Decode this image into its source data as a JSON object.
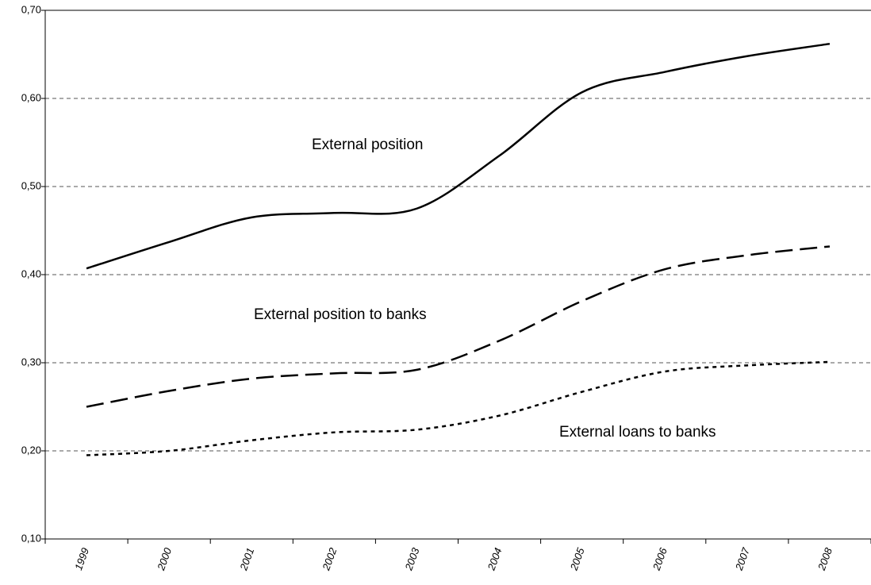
{
  "chart_data": {
    "type": "line",
    "categories": [
      "1999",
      "2000",
      "2001",
      "2002",
      "2003",
      "2004",
      "2005",
      "2006",
      "2007",
      "2008"
    ],
    "series": [
      {
        "name": "External position",
        "color": "#000000",
        "dash": "solid",
        "values": [
          0.407,
          0.437,
          0.465,
          0.47,
          0.475,
          0.535,
          0.607,
          0.63,
          0.648,
          0.662
        ]
      },
      {
        "name": "External position to banks",
        "color": "#000000",
        "dash": "long",
        "values": [
          0.25,
          0.268,
          0.282,
          0.288,
          0.292,
          0.325,
          0.37,
          0.406,
          0.422,
          0.432
        ]
      },
      {
        "name": "External loans to banks",
        "color": "#000000",
        "dash": "short",
        "values": [
          0.195,
          0.2,
          0.212,
          0.221,
          0.224,
          0.24,
          0.267,
          0.29,
          0.297,
          0.301
        ]
      }
    ],
    "ylim": [
      0.1,
      0.7
    ],
    "yticks": [
      {
        "value": 0.1,
        "label": "0,10"
      },
      {
        "value": 0.2,
        "label": "0,20"
      },
      {
        "value": 0.3,
        "label": "0,30"
      },
      {
        "value": 0.4,
        "label": "0,40"
      },
      {
        "value": 0.5,
        "label": "0,50"
      },
      {
        "value": 0.6,
        "label": "0,60"
      },
      {
        "value": 0.7,
        "label": "0,70"
      }
    ],
    "grid": true
  }
}
